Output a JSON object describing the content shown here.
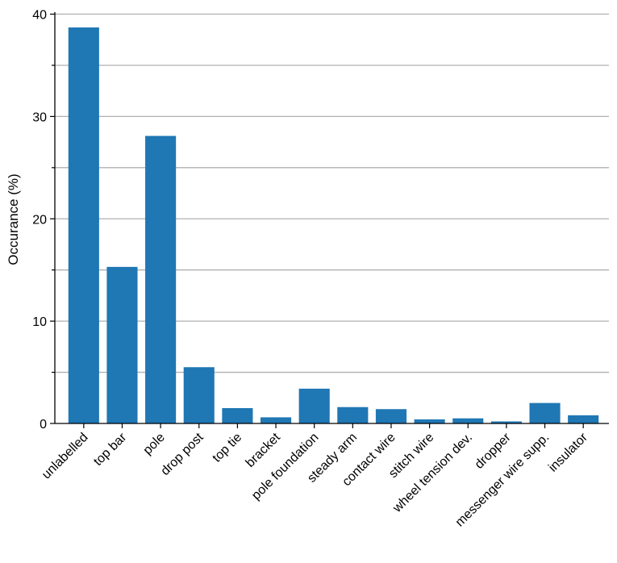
{
  "chart_data": {
    "type": "bar",
    "ylabel": "Occurance (%)",
    "xlabel": "",
    "ylim": [
      0,
      40.2
    ],
    "yticks": [
      0,
      10,
      20,
      30,
      40
    ],
    "grid": "horizontal",
    "bar_color": "#1f77b4",
    "categories": [
      "unlabelled",
      "top bar",
      "pole",
      "drop post",
      "top tie",
      "bracket",
      "pole foundation",
      "steady arm",
      "contact wire",
      "stitch wire",
      "wheel tension dev.",
      "dropper",
      "messenger wire supp.",
      "insulator"
    ],
    "values": [
      38.7,
      15.3,
      28.1,
      5.5,
      1.5,
      0.6,
      3.4,
      1.6,
      1.4,
      0.4,
      0.5,
      0.2,
      2.0,
      0.8
    ]
  }
}
